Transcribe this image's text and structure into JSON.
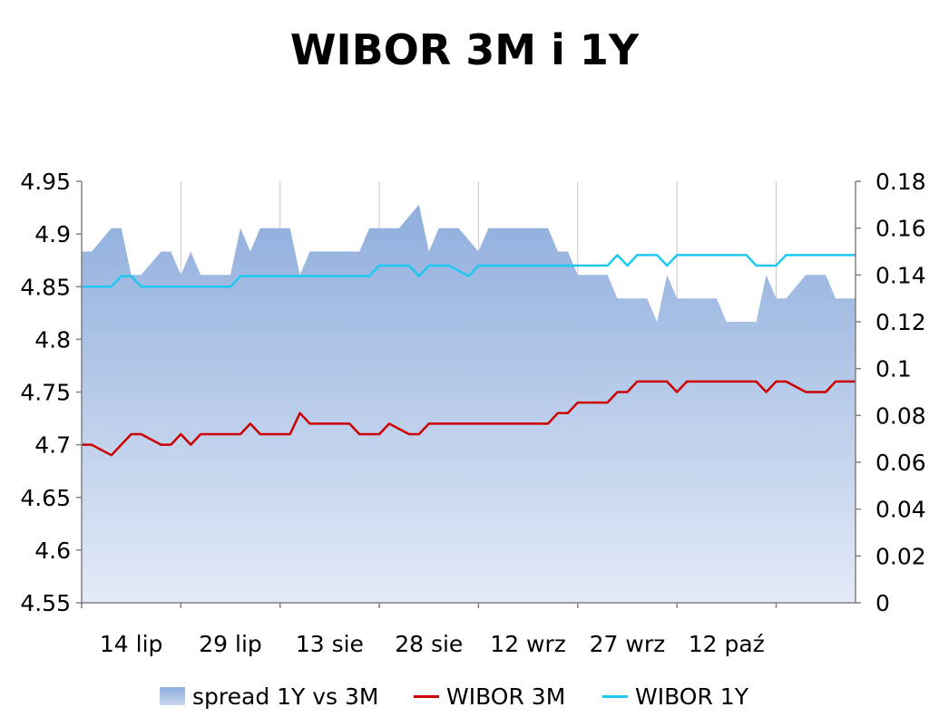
{
  "chart_data": {
    "type": "line",
    "title": "WIBOR 3M i 1Y",
    "x_tick_labels": [
      "14 lip",
      "29 lip",
      "13 sie",
      "28 sie",
      "12 wrz",
      "27 wrz",
      "12 paź"
    ],
    "y_left": {
      "min": 4.55,
      "max": 4.95,
      "ticks": [
        "4.55",
        "4.6",
        "4.65",
        "4.7",
        "4.75",
        "4.8",
        "4.85",
        "4.9",
        "4.95"
      ]
    },
    "y_right": {
      "min": 0,
      "max": 0.18,
      "ticks": [
        "0",
        "0.02",
        "0.04",
        "0.06",
        "0.08",
        "0.1",
        "0.12",
        "0.14",
        "0.16",
        "0.18"
      ]
    },
    "legend_position": "bottom",
    "grid": "vertical",
    "series": [
      {
        "name": "spread 1Y vs 3M",
        "type": "area",
        "axis": "right",
        "color": "#9db8e3",
        "points": [
          [
            0,
            0.15
          ],
          [
            1,
            0.15
          ],
          [
            3,
            0.16
          ],
          [
            4,
            0.16
          ],
          [
            5,
            0.14
          ],
          [
            6,
            0.14
          ],
          [
            8,
            0.15
          ],
          [
            9,
            0.15
          ],
          [
            10,
            0.14
          ],
          [
            11,
            0.15
          ],
          [
            12,
            0.14
          ],
          [
            15,
            0.14
          ],
          [
            16,
            0.16
          ],
          [
            17,
            0.15
          ],
          [
            18,
            0.16
          ],
          [
            21,
            0.16
          ],
          [
            22,
            0.14
          ],
          [
            23,
            0.15
          ],
          [
            28,
            0.15
          ],
          [
            29,
            0.16
          ],
          [
            32,
            0.16
          ],
          [
            34,
            0.17
          ],
          [
            35,
            0.15
          ],
          [
            36,
            0.16
          ],
          [
            38,
            0.16
          ],
          [
            40,
            0.15
          ],
          [
            41,
            0.16
          ],
          [
            47,
            0.16
          ],
          [
            48,
            0.15
          ],
          [
            49,
            0.15
          ],
          [
            50,
            0.14
          ],
          [
            53,
            0.14
          ],
          [
            54,
            0.13
          ],
          [
            57,
            0.13
          ],
          [
            58,
            0.12
          ],
          [
            59,
            0.14
          ],
          [
            60,
            0.13
          ],
          [
            64,
            0.13
          ],
          [
            65,
            0.12
          ],
          [
            68,
            0.12
          ],
          [
            69,
            0.14
          ],
          [
            70,
            0.13
          ],
          [
            71,
            0.13
          ],
          [
            73,
            0.14
          ],
          [
            75,
            0.14
          ],
          [
            76,
            0.13
          ],
          [
            78,
            0.13
          ]
        ]
      },
      {
        "name": "WIBOR 3M",
        "type": "line",
        "axis": "left",
        "color": "#cc0000",
        "points": [
          [
            0,
            4.7
          ],
          [
            1,
            4.7
          ],
          [
            3,
            4.69
          ],
          [
            4,
            4.7
          ],
          [
            5,
            4.71
          ],
          [
            6,
            4.71
          ],
          [
            8,
            4.7
          ],
          [
            9,
            4.7
          ],
          [
            10,
            4.71
          ],
          [
            11,
            4.7
          ],
          [
            12,
            4.71
          ],
          [
            16,
            4.71
          ],
          [
            17,
            4.72
          ],
          [
            18,
            4.71
          ],
          [
            21,
            4.71
          ],
          [
            22,
            4.73
          ],
          [
            23,
            4.72
          ],
          [
            27,
            4.72
          ],
          [
            28,
            4.71
          ],
          [
            29,
            4.71
          ],
          [
            30,
            4.71
          ],
          [
            31,
            4.72
          ],
          [
            33,
            4.71
          ],
          [
            34,
            4.71
          ],
          [
            35,
            4.72
          ],
          [
            45,
            4.72
          ],
          [
            46,
            4.72
          ],
          [
            47,
            4.72
          ],
          [
            48,
            4.73
          ],
          [
            49,
            4.73
          ],
          [
            50,
            4.74
          ],
          [
            53,
            4.74
          ],
          [
            54,
            4.75
          ],
          [
            55,
            4.75
          ],
          [
            56,
            4.76
          ],
          [
            59,
            4.76
          ],
          [
            60,
            4.75
          ],
          [
            61,
            4.76
          ],
          [
            68,
            4.76
          ],
          [
            69,
            4.75
          ],
          [
            70,
            4.76
          ],
          [
            71,
            4.76
          ],
          [
            73,
            4.75
          ],
          [
            75,
            4.75
          ],
          [
            76,
            4.76
          ],
          [
            78,
            4.76
          ]
        ]
      },
      {
        "name": "WIBOR 1Y",
        "type": "line",
        "axis": "left",
        "color": "#1ec8f0",
        "points": [
          [
            0,
            4.85
          ],
          [
            3,
            4.85
          ],
          [
            4,
            4.86
          ],
          [
            5,
            4.86
          ],
          [
            6,
            4.85
          ],
          [
            14,
            4.85
          ],
          [
            15,
            4.85
          ],
          [
            16,
            4.86
          ],
          [
            17,
            4.86
          ],
          [
            28,
            4.86
          ],
          [
            29,
            4.86
          ],
          [
            30,
            4.87
          ],
          [
            32,
            4.87
          ],
          [
            33,
            4.87
          ],
          [
            34,
            4.86
          ],
          [
            35,
            4.87
          ],
          [
            37,
            4.87
          ],
          [
            39,
            4.86
          ],
          [
            40,
            4.87
          ],
          [
            50,
            4.87
          ],
          [
            51,
            4.87
          ],
          [
            53,
            4.87
          ],
          [
            54,
            4.88
          ],
          [
            55,
            4.87
          ],
          [
            56,
            4.88
          ],
          [
            58,
            4.88
          ],
          [
            59,
            4.87
          ],
          [
            60,
            4.88
          ],
          [
            67,
            4.88
          ],
          [
            68,
            4.87
          ],
          [
            70,
            4.87
          ],
          [
            71,
            4.88
          ],
          [
            78,
            4.88
          ]
        ]
      }
    ]
  }
}
